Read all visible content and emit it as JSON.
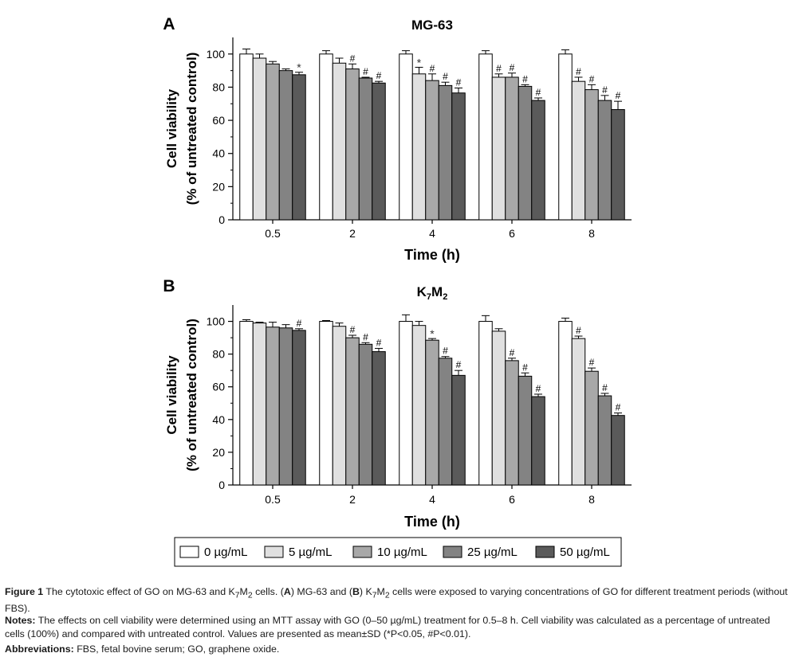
{
  "chart_data": [
    {
      "type": "bar",
      "panel_label": "A",
      "title": "MG-63",
      "categories": [
        "0.5",
        "2",
        "4",
        "6",
        "8"
      ],
      "xlabel": "Time (h)",
      "ylabel_line1": "Cell viability",
      "ylabel_line2": "(% of untreated control)",
      "ylim": [
        0,
        110
      ],
      "yticks": [
        "0",
        "20",
        "40",
        "60",
        "80",
        "100"
      ],
      "series": [
        {
          "name": "0 µg/mL",
          "color": "#ffffff",
          "values": [
            100,
            100,
            100,
            100,
            100
          ],
          "errors": [
            3,
            2,
            2,
            2,
            2.5
          ],
          "marks": [
            "",
            "",
            "",
            "",
            ""
          ]
        },
        {
          "name": "5 µg/mL",
          "color": "#e0e0e0",
          "values": [
            97.5,
            94.5,
            88,
            86,
            83.5
          ],
          "errors": [
            2.5,
            3,
            4,
            2,
            2.5
          ],
          "marks": [
            "",
            "",
            "*",
            "#",
            "#"
          ]
        },
        {
          "name": "10 µg/mL",
          "color": "#a8a8a8",
          "values": [
            94,
            91,
            84,
            86,
            78.5
          ],
          "errors": [
            1.5,
            3,
            4,
            2.5,
            3
          ],
          "marks": [
            "",
            "#",
            "#",
            "#",
            "#"
          ]
        },
        {
          "name": "25 µg/mL",
          "color": "#838383",
          "values": [
            90,
            85.5,
            81,
            80.5,
            72
          ],
          "errors": [
            1,
            0.5,
            2,
            1,
            3
          ],
          "marks": [
            "",
            "#",
            "#",
            "#",
            "#"
          ]
        },
        {
          "name": "50 µg/mL",
          "color": "#5a5a5a",
          "values": [
            87.5,
            82.5,
            76.5,
            72,
            66.5
          ],
          "errors": [
            1.5,
            1,
            3,
            1.5,
            5
          ],
          "marks": [
            "*",
            "#",
            "#",
            "#",
            "#"
          ]
        }
      ]
    },
    {
      "type": "bar",
      "panel_label": "B",
      "title": "K7M2",
      "title_main": "K",
      "title_sub1": "7",
      "title_mid": "M",
      "title_sub2": "2",
      "categories": [
        "0.5",
        "2",
        "4",
        "6",
        "8"
      ],
      "xlabel": "Time (h)",
      "ylabel_line1": "Cell viability",
      "ylabel_line2": "(% of untreated control)",
      "ylim": [
        0,
        110
      ],
      "yticks": [
        "0",
        "20",
        "40",
        "60",
        "80",
        "100"
      ],
      "series": [
        {
          "name": "0 µg/mL",
          "color": "#ffffff",
          "values": [
            100,
            100,
            100,
            100,
            100
          ],
          "errors": [
            1,
            0.5,
            4,
            3.5,
            2
          ],
          "marks": [
            "",
            "",
            "",
            "",
            ""
          ]
        },
        {
          "name": "5 µg/mL",
          "color": "#e0e0e0",
          "values": [
            99,
            97,
            97.5,
            94,
            89.5
          ],
          "errors": [
            0.5,
            2,
            2.5,
            1.5,
            1.5
          ],
          "marks": [
            "",
            "",
            "",
            "",
            "#"
          ]
        },
        {
          "name": "10 µg/mL",
          "color": "#a8a8a8",
          "values": [
            96.5,
            90,
            88.5,
            76,
            69.5
          ],
          "errors": [
            3,
            1.5,
            1,
            1.5,
            2
          ],
          "marks": [
            "",
            "#",
            "*",
            "#",
            "#"
          ]
        },
        {
          "name": "25 µg/mL",
          "color": "#838383",
          "values": [
            96,
            86,
            77.5,
            66.5,
            54.5
          ],
          "errors": [
            2,
            1,
            1,
            2,
            1.5
          ],
          "marks": [
            "",
            "#",
            "#",
            "#",
            "#"
          ]
        },
        {
          "name": "50 µg/mL",
          "color": "#5a5a5a",
          "values": [
            94.5,
            81.5,
            67,
            54,
            42.5
          ],
          "errors": [
            1,
            2,
            3,
            1.5,
            1.5
          ],
          "marks": [
            "#",
            "#",
            "#",
            "#",
            "#"
          ]
        }
      ]
    }
  ],
  "legend": {
    "items": [
      {
        "label": "0 µg/mL",
        "color": "#ffffff"
      },
      {
        "label": "5 µg/mL",
        "color": "#e0e0e0"
      },
      {
        "label": "10 µg/mL",
        "color": "#a8a8a8"
      },
      {
        "label": "25 µg/mL",
        "color": "#838383"
      },
      {
        "label": "50 µg/mL",
        "color": "#5a5a5a"
      }
    ]
  },
  "caption": {
    "figure_label": "Figure 1",
    "figure_text_1": " The cytotoxic effect of GO on MG-63 and K",
    "figure_sub_1": "7",
    "figure_text_2": "M",
    "figure_sub_2": "2",
    "figure_text_3": " cells. (",
    "figure_bold_a": "A",
    "figure_text_4": ") MG-63 and (",
    "figure_bold_b": "B",
    "figure_text_5": ") K",
    "figure_sub_3": "7",
    "figure_text_6": "M",
    "figure_sub_4": "2",
    "figure_text_7": " cells were exposed to varying concentrations of GO for different treatment periods (without FBS).",
    "notes_label": "Notes:",
    "notes_text": " The effects on cell viability were determined using an MTT assay with GO (0–50 µg/mL) treatment for 0.5–8 h. Cell viability was calculated as a percentage of untreated cells (100%) and compared with untreated control. Values are presented as mean±SD (*P<0.05, #P<0.01).",
    "abbr_label": "Abbreviations:",
    "abbr_text": " FBS, fetal bovine serum; GO, graphene oxide."
  }
}
